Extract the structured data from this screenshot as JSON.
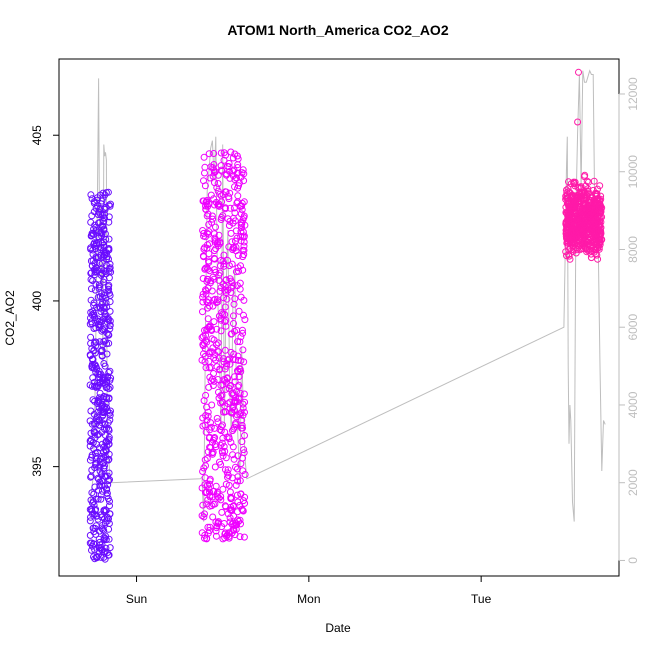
{
  "chart_data": {
    "type": "scatter",
    "title": "ATOM1 North_America CO2_AO2",
    "xlabel": "Date",
    "ylabel": "CO2_AO2",
    "x_axis_ticks": [
      "Sun",
      "Mon",
      "Tue"
    ],
    "y_left": {
      "lim": [
        391.7,
        407.3
      ],
      "ticks": [
        395,
        400,
        405
      ]
    },
    "y_right": {
      "lim": [
        -400,
        12900
      ],
      "ticks": [
        0,
        2000,
        4000,
        6000,
        8000,
        10000,
        12000
      ],
      "color": "#bebebe"
    },
    "x_lim_days": [
      -0.3,
      2.95
    ],
    "grid": false,
    "legend": "none",
    "point_color_low": "#6a0dff",
    "point_color_mid": "#ee00ff",
    "point_color_high": "#ff1aa8",
    "line_color": "#bebebe",
    "clusters": [
      {
        "x_range_days": [
          -0.12,
          0.0
        ],
        "y_range": [
          392.2,
          403.3
        ],
        "color": "#6a0dff",
        "count": 520
      },
      {
        "x_range_days": [
          0.53,
          0.78
        ],
        "y_range": [
          392.8,
          404.5
        ],
        "color": "#ee00ff",
        "count": 620
      },
      {
        "x_range_days": [
          2.64,
          2.85
        ],
        "y_range": [
          400.8,
          404.0
        ],
        "color": "#ff1aa8",
        "count": 620
      }
    ],
    "outliers": [
      {
        "x_days": 2.715,
        "y": 406.9,
        "color": "#ff1aa8"
      },
      {
        "x_days": 2.71,
        "y": 405.4,
        "color": "#ff1aa8"
      },
      {
        "x_days": 0.71,
        "y": 393.1,
        "color": "#ee00ff"
      },
      {
        "x_days": 0.7,
        "y": 393.7,
        "color": "#ee00ff"
      }
    ],
    "secondary_line": {
      "x_days": [
        -0.12,
        -0.1,
        -0.09,
        -0.08,
        -0.07,
        -0.065,
        -0.06,
        -0.055,
        -0.05,
        -0.045,
        -0.04,
        -0.035,
        -0.03,
        -0.025,
        -0.02,
        -0.01,
        0.0,
        0.52,
        0.53,
        0.54,
        0.55,
        0.56,
        0.57,
        0.58,
        0.59,
        0.6,
        0.61,
        0.62,
        0.63,
        0.64,
        0.65,
        0.66,
        0.67,
        0.68,
        0.69,
        0.7,
        0.71,
        0.72,
        0.73,
        0.74,
        0.75,
        0.76,
        0.77,
        0.78,
        0.79,
        2.63,
        2.64,
        2.645,
        2.65,
        2.655,
        2.66,
        2.665,
        2.67,
        2.68,
        2.69,
        2.7,
        2.71,
        2.72,
        2.73,
        2.74,
        2.75,
        2.76,
        2.78,
        2.79,
        2.8,
        2.81,
        2.82,
        2.83,
        2.84,
        2.85,
        2.86,
        2.87
      ],
      "values": [
        1500,
        2200,
        4500,
        8000,
        12400,
        8500,
        9200,
        7000,
        7600,
        5000,
        10700,
        10400,
        10500,
        10300,
        3000,
        2500,
        2000,
        2100,
        2150,
        1000,
        6000,
        9500,
        10000,
        10600,
        10800,
        9800,
        10900,
        7000,
        5500,
        3400,
        10700,
        3500,
        7000,
        8500,
        4500,
        3200,
        6800,
        7500,
        4000,
        3000,
        2000,
        5500,
        3800,
        2600,
        2100,
        6000,
        8500,
        10000,
        10900,
        5000,
        3000,
        4000,
        3600,
        1500,
        1000,
        9000,
        11000,
        12500,
        9600,
        12600,
        12300,
        12300,
        12600,
        12500,
        12500,
        8600,
        9000,
        8000,
        5000,
        2300,
        3600,
        3500
      ]
    }
  }
}
